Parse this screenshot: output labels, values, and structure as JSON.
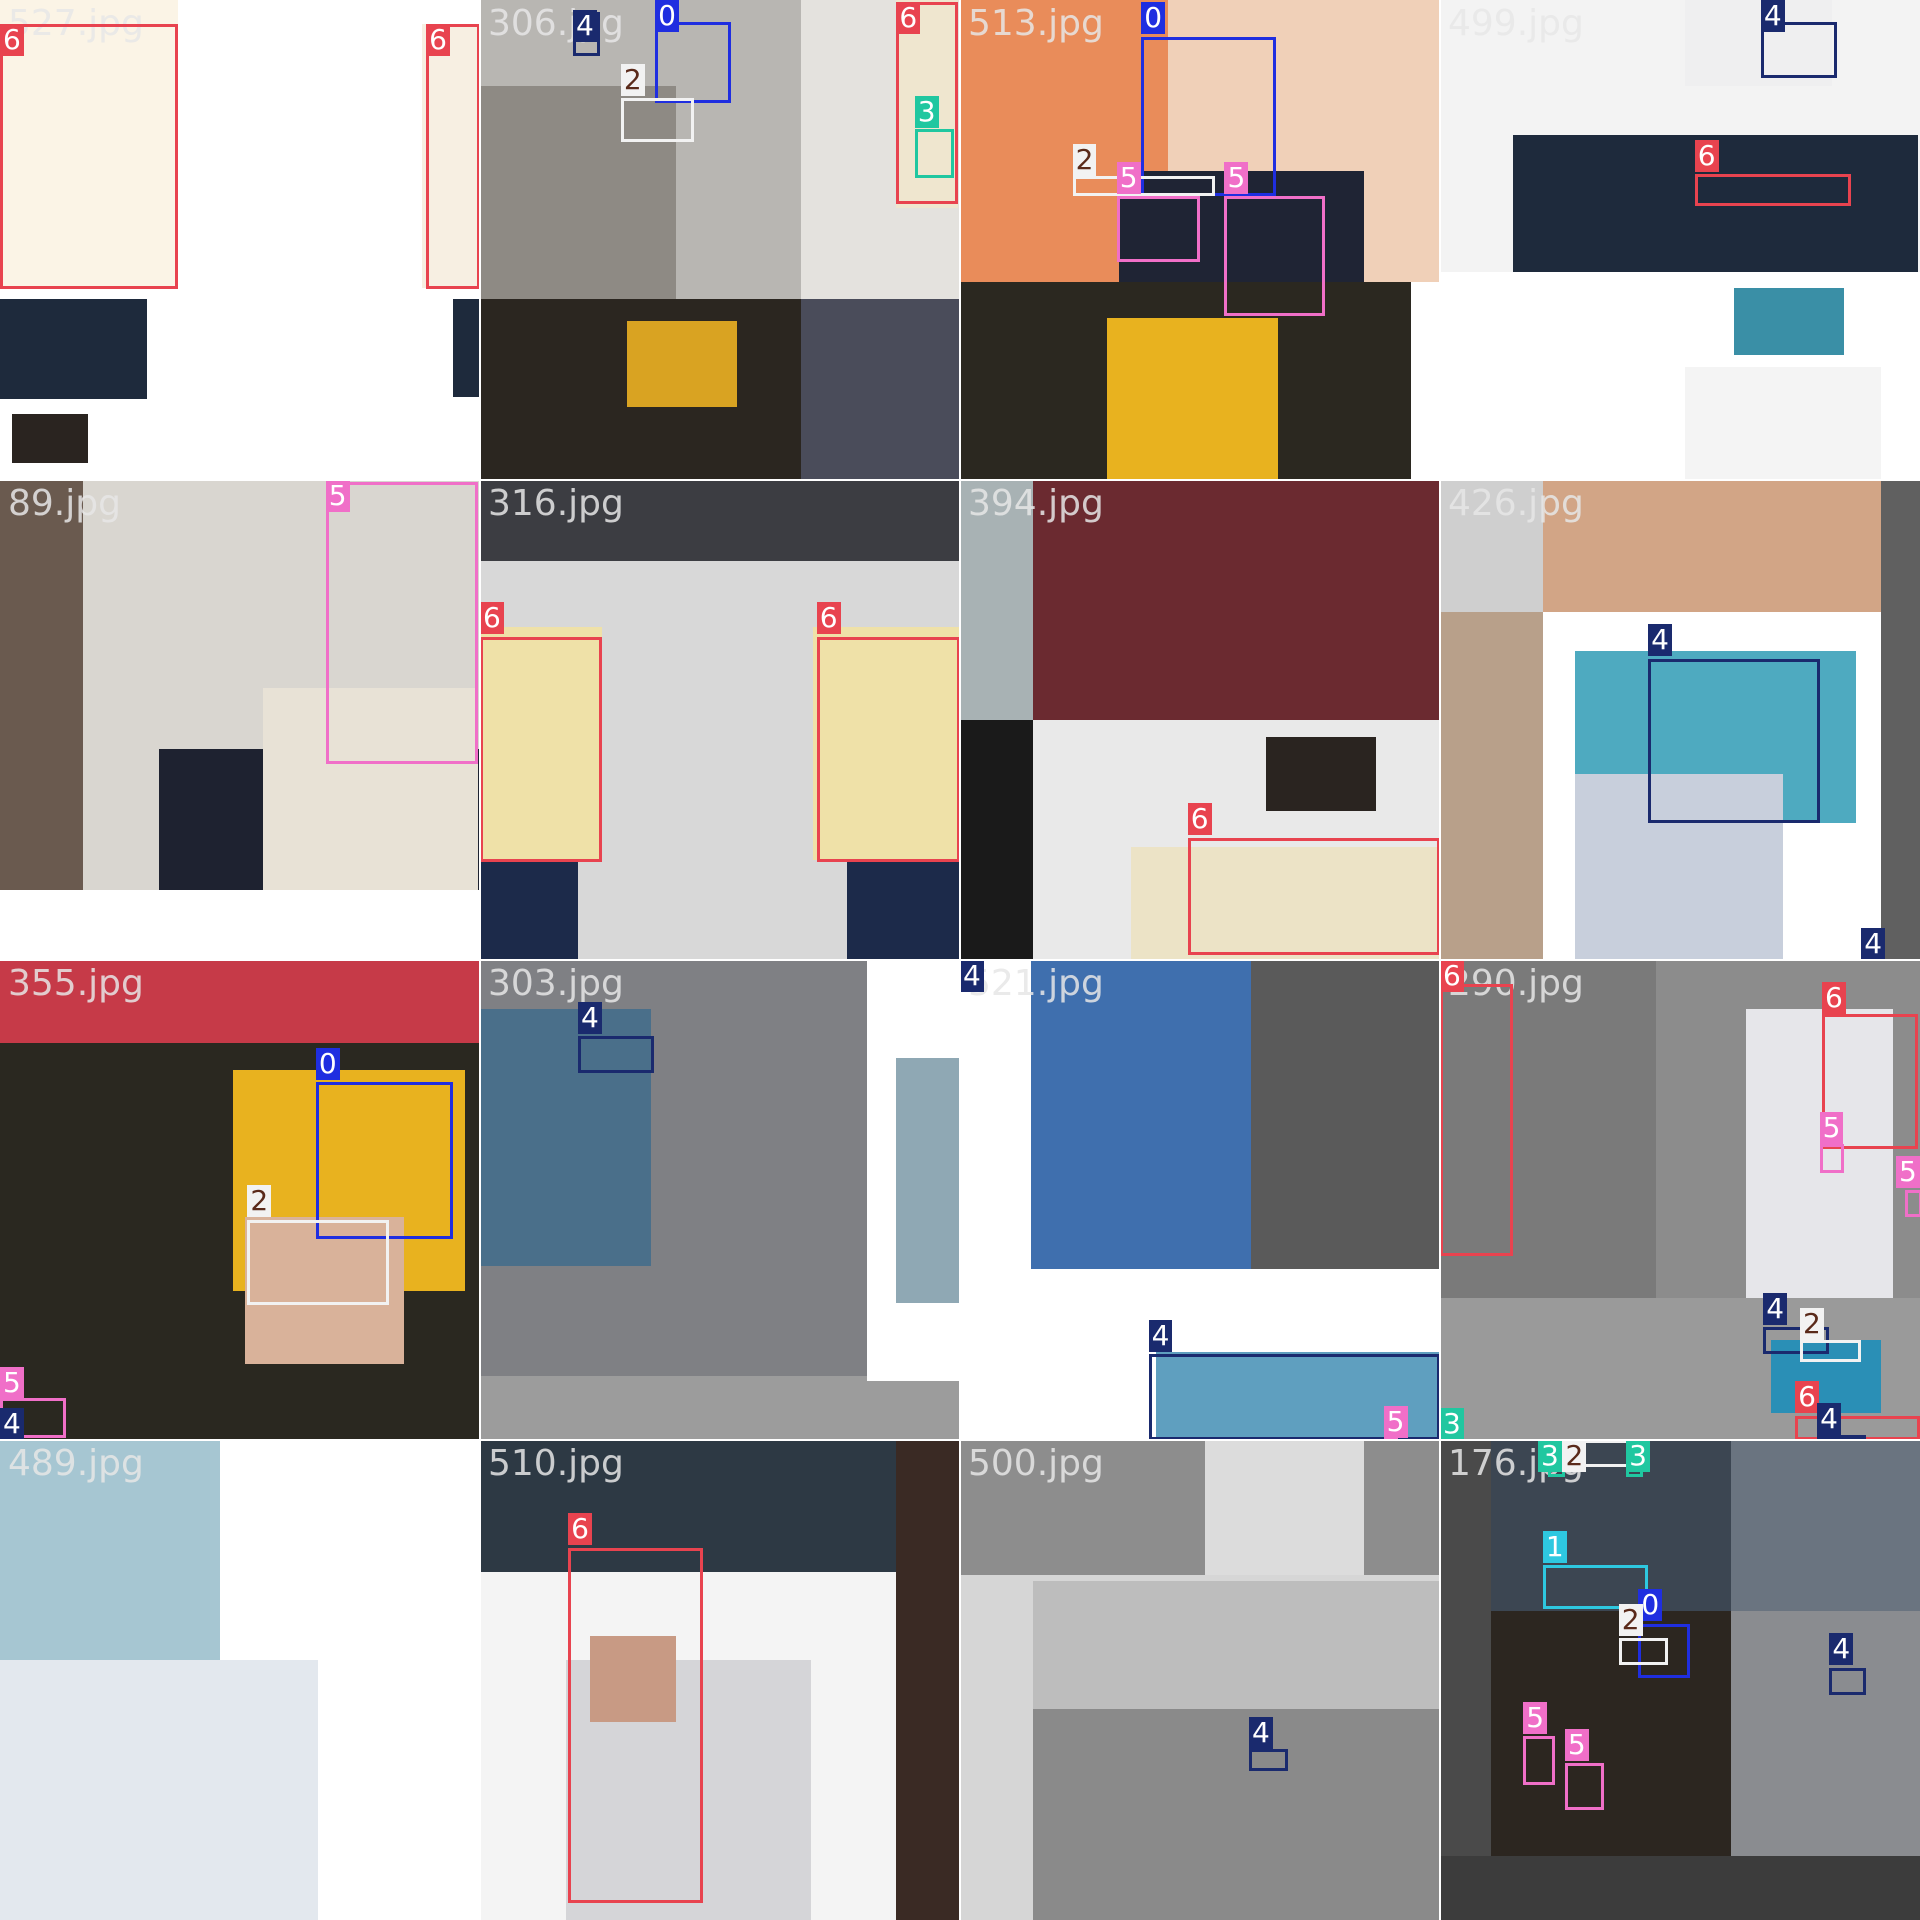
{
  "class_colors": {
    "0": "#1f2ee0",
    "1": "#2ec8e0",
    "2": "#f2f2f2",
    "3": "#20c7a0",
    "4": "#1a2a6e",
    "5": "#f06fc8",
    "6": "#e8434f"
  },
  "tiles": [
    {
      "filename": "527.jpg",
      "boxes": [
        "6",
        "6"
      ]
    },
    {
      "filename": "306.jpg",
      "boxes": [
        "4",
        "6",
        "0",
        "2",
        "3"
      ]
    },
    {
      "filename": "513.jpg",
      "boxes": [
        "0",
        "2",
        "5",
        "5"
      ]
    },
    {
      "filename": "499.jpg",
      "boxes": [
        "4",
        "6"
      ]
    },
    {
      "filename": "89.jpg",
      "boxes": [
        "5"
      ]
    },
    {
      "filename": "316.jpg",
      "boxes": [
        "6",
        "6"
      ]
    },
    {
      "filename": "394.jpg",
      "boxes": [
        "6"
      ]
    },
    {
      "filename": "426.jpg",
      "boxes": [
        "4",
        "4"
      ]
    },
    {
      "filename": "355.jpg",
      "boxes": [
        "0",
        "2",
        "5",
        "4"
      ]
    },
    {
      "filename": "303.jpg",
      "boxes": [
        "4"
      ]
    },
    {
      "filename": "521.jpg",
      "boxes": [
        "4",
        "5",
        "4"
      ]
    },
    {
      "filename": "290.jpg",
      "boxes": [
        "6",
        "6",
        "5",
        "5",
        "4",
        "2",
        "6",
        "4",
        "3"
      ]
    },
    {
      "filename": "489.jpg",
      "boxes": []
    },
    {
      "filename": "510.jpg",
      "boxes": [
        "6"
      ]
    },
    {
      "filename": "500.jpg",
      "boxes": [
        "4"
      ]
    },
    {
      "filename": "176.jpg",
      "boxes": [
        "3",
        "2",
        "3",
        "1",
        "0",
        "2",
        "4",
        "5",
        "5"
      ]
    }
  ]
}
